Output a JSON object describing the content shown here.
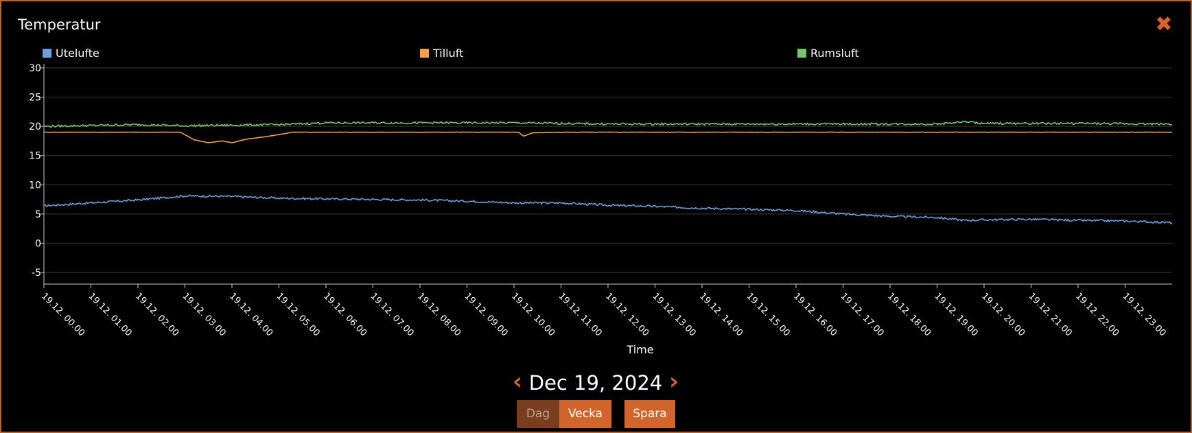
{
  "dialog": {
    "title": "Temperatur",
    "close_icon": "close-x-icon"
  },
  "chart_data": {
    "type": "line",
    "title": "Temperatur",
    "xlabel": "Time",
    "ylabel": "",
    "ylim": [
      -7,
      30
    ],
    "yticks": [
      30,
      25,
      20,
      15,
      10,
      5,
      0,
      -5
    ],
    "xlim": [
      0,
      24
    ],
    "xticks": [
      "19.12. 00.00",
      "19.12. 01.00",
      "19.12. 02.00",
      "19.12. 03.00",
      "19.12. 04.00",
      "19.12. 05.00",
      "19.12. 06.00",
      "19.12. 07.00",
      "19.12. 08.00",
      "19.12. 09.00",
      "19.12. 10.00",
      "19.12. 11.00",
      "19.12. 12.00",
      "19.12. 13.00",
      "19.12. 14.00",
      "19.12. 15.00",
      "19.12. 16.00",
      "19.12. 17.00",
      "19.12. 18.00",
      "19.12. 19.00",
      "19.12. 20.00",
      "19.12. 21.00",
      "19.12. 22.00",
      "19.12. 23.00"
    ],
    "grid": true,
    "legend": "top",
    "series": [
      {
        "name": "Utelufte",
        "color": "#6d9fdc",
        "x": [
          0,
          1,
          2,
          3,
          4,
          5,
          6,
          7,
          8,
          9,
          10,
          11,
          12,
          13,
          14,
          15,
          16,
          17,
          17.5,
          18,
          19,
          19.6,
          20,
          21,
          22,
          23,
          24
        ],
        "y": [
          6.4,
          6.9,
          7.4,
          8.1,
          8.0,
          7.7,
          7.6,
          7.5,
          7.4,
          7.2,
          6.9,
          6.9,
          6.5,
          6.3,
          6.0,
          5.8,
          5.6,
          5.0,
          4.8,
          4.6,
          4.4,
          3.9,
          4.0,
          4.1,
          3.9,
          3.8,
          3.5
        ]
      },
      {
        "name": "Tilluft",
        "color": "#f0a24a",
        "x": [
          0,
          2.9,
          3.2,
          3.5,
          3.8,
          4.0,
          4.3,
          4.7,
          5.0,
          5.3,
          6,
          10.1,
          10.2,
          10.4,
          11,
          19,
          19.5,
          20,
          24
        ],
        "y": [
          19.0,
          19.0,
          17.7,
          17.2,
          17.5,
          17.2,
          17.8,
          18.2,
          18.6,
          19.0,
          19.0,
          19.0,
          18.3,
          18.9,
          19.0,
          19.0,
          19.0,
          19.0,
          19.0
        ]
      },
      {
        "name": "Rumsluft",
        "color": "#7ac26e",
        "x": [
          0,
          2,
          3,
          4,
          5,
          6,
          10,
          12,
          15,
          18,
          19,
          19.6,
          20,
          22,
          24
        ],
        "y": [
          20.0,
          20.3,
          20.1,
          20.2,
          20.3,
          20.6,
          20.6,
          20.4,
          20.4,
          20.4,
          20.4,
          20.8,
          20.5,
          20.5,
          20.4
        ]
      }
    ]
  },
  "nav": {
    "prev_icon": "chevron-left-icon",
    "next_icon": "chevron-right-icon",
    "date": "Dec 19, 2024"
  },
  "buttons": {
    "dag": "Dag",
    "vecka": "Vecka",
    "spara": "Spara"
  }
}
